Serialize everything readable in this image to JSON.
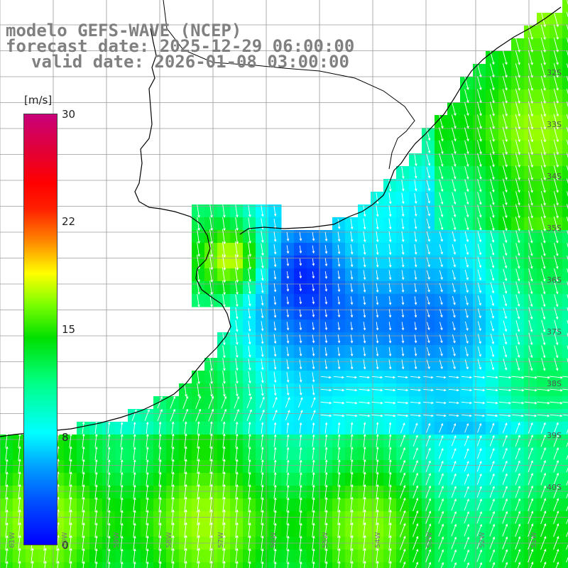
{
  "title": {
    "line1": "modelo GEFS-WAVE (NCEP)",
    "line2": "forecast date: 2025-12-29 06:00:00",
    "line3": "valid date: 2026-01-08 03:00:00"
  },
  "colorbar": {
    "unit": "[m/s]",
    "min": 0,
    "max": 30,
    "ticks": [
      "30",
      "22",
      "15",
      "8",
      "0"
    ],
    "tick_values": [
      30,
      22,
      15,
      8,
      0
    ]
  },
  "axes": {
    "lat_labels": [
      "32S",
      "33S",
      "34S",
      "35S",
      "36S",
      "37S",
      "38S",
      "39S",
      "40S"
    ],
    "lat_values": [
      -32,
      -33,
      -34,
      -35,
      -36,
      -37,
      -38,
      -39,
      -40
    ],
    "lon_labels": [
      "61W",
      "60W",
      "59W",
      "58W",
      "57W",
      "56W",
      "55W",
      "54W",
      "53W",
      "52W",
      "51W"
    ],
    "lon_values": [
      -61,
      -60,
      -59,
      -58,
      -57,
      -56,
      -55,
      -54,
      -53,
      -52,
      -51
    ]
  },
  "colors": {
    "coastline": "#000000",
    "grid": "#9a9a9a",
    "arrow": "#ffffff",
    "land": "#ffffff"
  },
  "field": "wind speed (m/s) with direction arrows"
}
